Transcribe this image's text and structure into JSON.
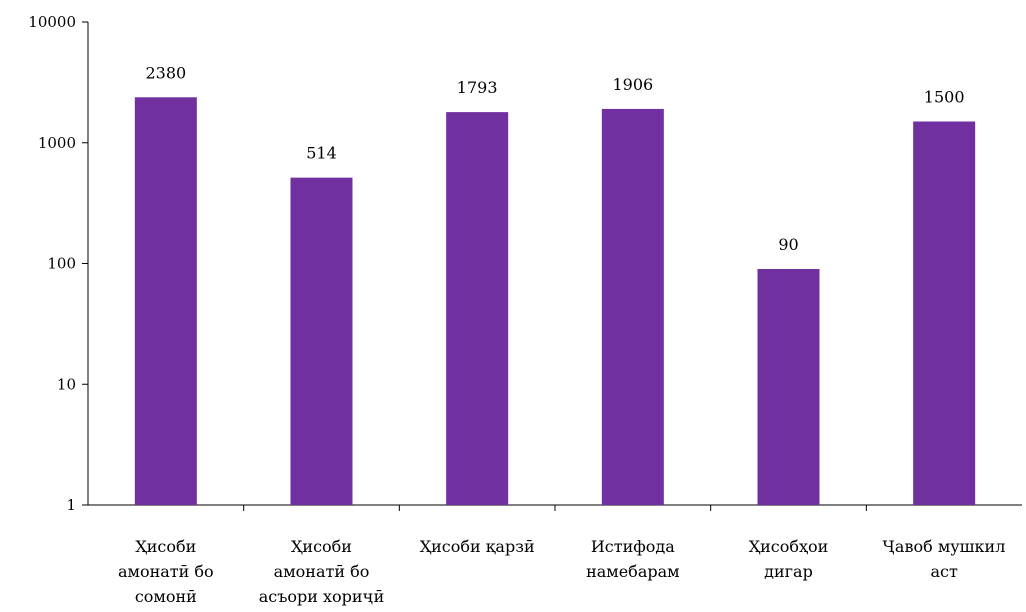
{
  "chart_data": {
    "type": "bar",
    "title": "",
    "xlabel": "",
    "ylabel": "",
    "yscale": "log",
    "ylim": [
      1,
      10000
    ],
    "grid": false,
    "legend": "none",
    "bar_color": "#7030A0",
    "yticks": [
      "1",
      "10",
      "100",
      "1000",
      "10000"
    ],
    "categories": [
      [
        "Ҳисоби",
        "амонатӣ бо",
        "сомонӣ"
      ],
      [
        "Ҳисоби",
        "амонатӣ бо",
        "асъори хориҷӣ"
      ],
      [
        "Ҳисоби қарзӣ"
      ],
      [
        "Истифода",
        "намебарам"
      ],
      [
        "Ҳисобҳои",
        "дигар"
      ],
      [
        "Ҷавоб мушкил",
        "аст"
      ]
    ],
    "values": [
      2380,
      514,
      1793,
      1906,
      90,
      1500
    ],
    "data_labels": [
      "2380",
      "514",
      "1793",
      "1906",
      "90",
      "1500"
    ]
  }
}
